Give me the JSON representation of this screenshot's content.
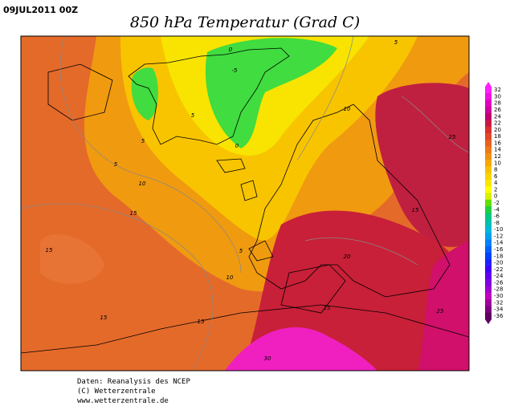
{
  "header": {
    "date": "09JUL2011 00Z",
    "title": "850 hPa Temperatur (Grad C)"
  },
  "colorbar": {
    "ticks": [
      32,
      30,
      28,
      26,
      24,
      22,
      20,
      18,
      16,
      14,
      12,
      10,
      8,
      6,
      4,
      2,
      0,
      -2,
      -4,
      -6,
      -8,
      -10,
      -12,
      -14,
      -16,
      -18,
      -20,
      -22,
      -24,
      -26,
      -28,
      -30,
      -32,
      -34,
      -36
    ],
    "colors": [
      "#ff20ff",
      "#f010e0",
      "#e000c0",
      "#d000a0",
      "#c00070",
      "#c81848",
      "#d83030",
      "#e04828",
      "#e86020",
      "#f07818",
      "#f09010",
      "#f8a800",
      "#f8c000",
      "#f8d400",
      "#f8e800",
      "#ffff00",
      "#d8f000",
      "#60e000",
      "#20d040",
      "#00c880",
      "#00c0b0",
      "#00b8d8",
      "#00a0f0",
      "#0080ff",
      "#0060ff",
      "#0040ff",
      "#2020ff",
      "#4000ff",
      "#6000f0",
      "#8000e0",
      "#a000d0",
      "#c000c0",
      "#a000a0",
      "#800080",
      "#600060"
    ]
  },
  "contour_labels": [
    "0",
    "5",
    "-5",
    "5",
    "10",
    "5",
    "5",
    "0",
    "10",
    "15",
    "15",
    "25",
    "15",
    "5",
    "20",
    "10",
    "25",
    "25",
    "15",
    "15",
    "30"
  ],
  "footer": [
    "Daten: Reanalysis des NCEP",
    "(C) Wetterzentrale",
    "www.wetterzentrale.de"
  ]
}
